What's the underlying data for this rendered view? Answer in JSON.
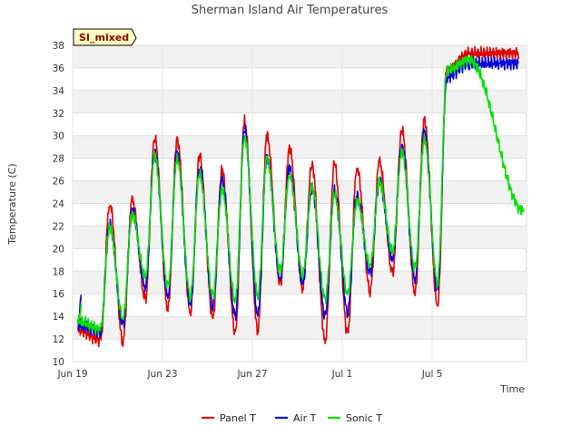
{
  "chart_data": {
    "type": "line",
    "title": "Sherman Island Air Temperatures",
    "badge": "SI_mixed",
    "xlabel": "Time",
    "ylabel": "Temperature (C)",
    "ylim": [
      10,
      38
    ],
    "yticks": [
      10,
      12,
      14,
      16,
      18,
      20,
      22,
      24,
      26,
      28,
      30,
      32,
      34,
      36,
      38
    ],
    "xlim": [
      0,
      20.2
    ],
    "xticks": [
      {
        "day": 0,
        "label": "Jun 19"
      },
      {
        "day": 4,
        "label": "Jun 23"
      },
      {
        "day": 8,
        "label": "Jun 27"
      },
      {
        "day": 12,
        "label": "Jul 1"
      },
      {
        "day": 16,
        "label": "Jul 5"
      }
    ],
    "grid": true,
    "legend_position": "bottom",
    "daily_extremes": {
      "days": [
        0,
        1,
        2,
        3,
        4,
        5,
        6,
        7,
        8,
        9,
        10,
        11,
        12,
        13,
        14,
        15,
        16,
        17,
        18
      ],
      "note_units": "degrees C",
      "series": [
        {
          "name": "Panel T",
          "color": "#e00000",
          "max": [
            null,
            24.0,
            24.3,
            29.8,
            29.7,
            28.2,
            27.0,
            31.3,
            30.0,
            28.9,
            27.5,
            27.5,
            27.2,
            27.7,
            30.6,
            31.5,
            35.8,
            37.3,
            null
          ],
          "min": [
            12.8,
            11.9,
            11.8,
            15.5,
            14.7,
            14.3,
            13.9,
            12.5,
            12.8,
            16.8,
            16.5,
            11.8,
            12.5,
            16.3,
            17.8,
            16.1,
            14.9,
            null,
            null
          ]
        },
        {
          "name": "Air T",
          "color": "#0000e0",
          "max": [
            null,
            22.1,
            23.4,
            28.6,
            28.5,
            27.3,
            26.1,
            30.6,
            28.2,
            27.1,
            25.4,
            25.1,
            24.7,
            26.0,
            29.2,
            30.3,
            35.2,
            36.4,
            null
          ],
          "min": [
            13.2,
            12.7,
            13.2,
            16.6,
            15.8,
            15.0,
            15.0,
            14.0,
            14.2,
            17.3,
            17.0,
            14.0,
            14.4,
            17.8,
            19.1,
            17.3,
            16.3,
            null,
            null
          ]
        },
        {
          "name": "Sonic T",
          "color": "#00e000",
          "max": [
            null,
            22.0,
            23.0,
            28.2,
            28.0,
            26.6,
            25.2,
            30.0,
            28.0,
            26.6,
            25.5,
            24.8,
            24.3,
            25.9,
            28.6,
            29.7,
            35.8,
            36.7,
            null
          ],
          "min": [
            13.6,
            12.9,
            13.8,
            17.6,
            16.6,
            15.8,
            15.8,
            15.4,
            15.9,
            18.0,
            17.8,
            15.5,
            16.0,
            18.5,
            19.8,
            18.2,
            17.0,
            null,
            null
          ]
        }
      ]
    }
  }
}
